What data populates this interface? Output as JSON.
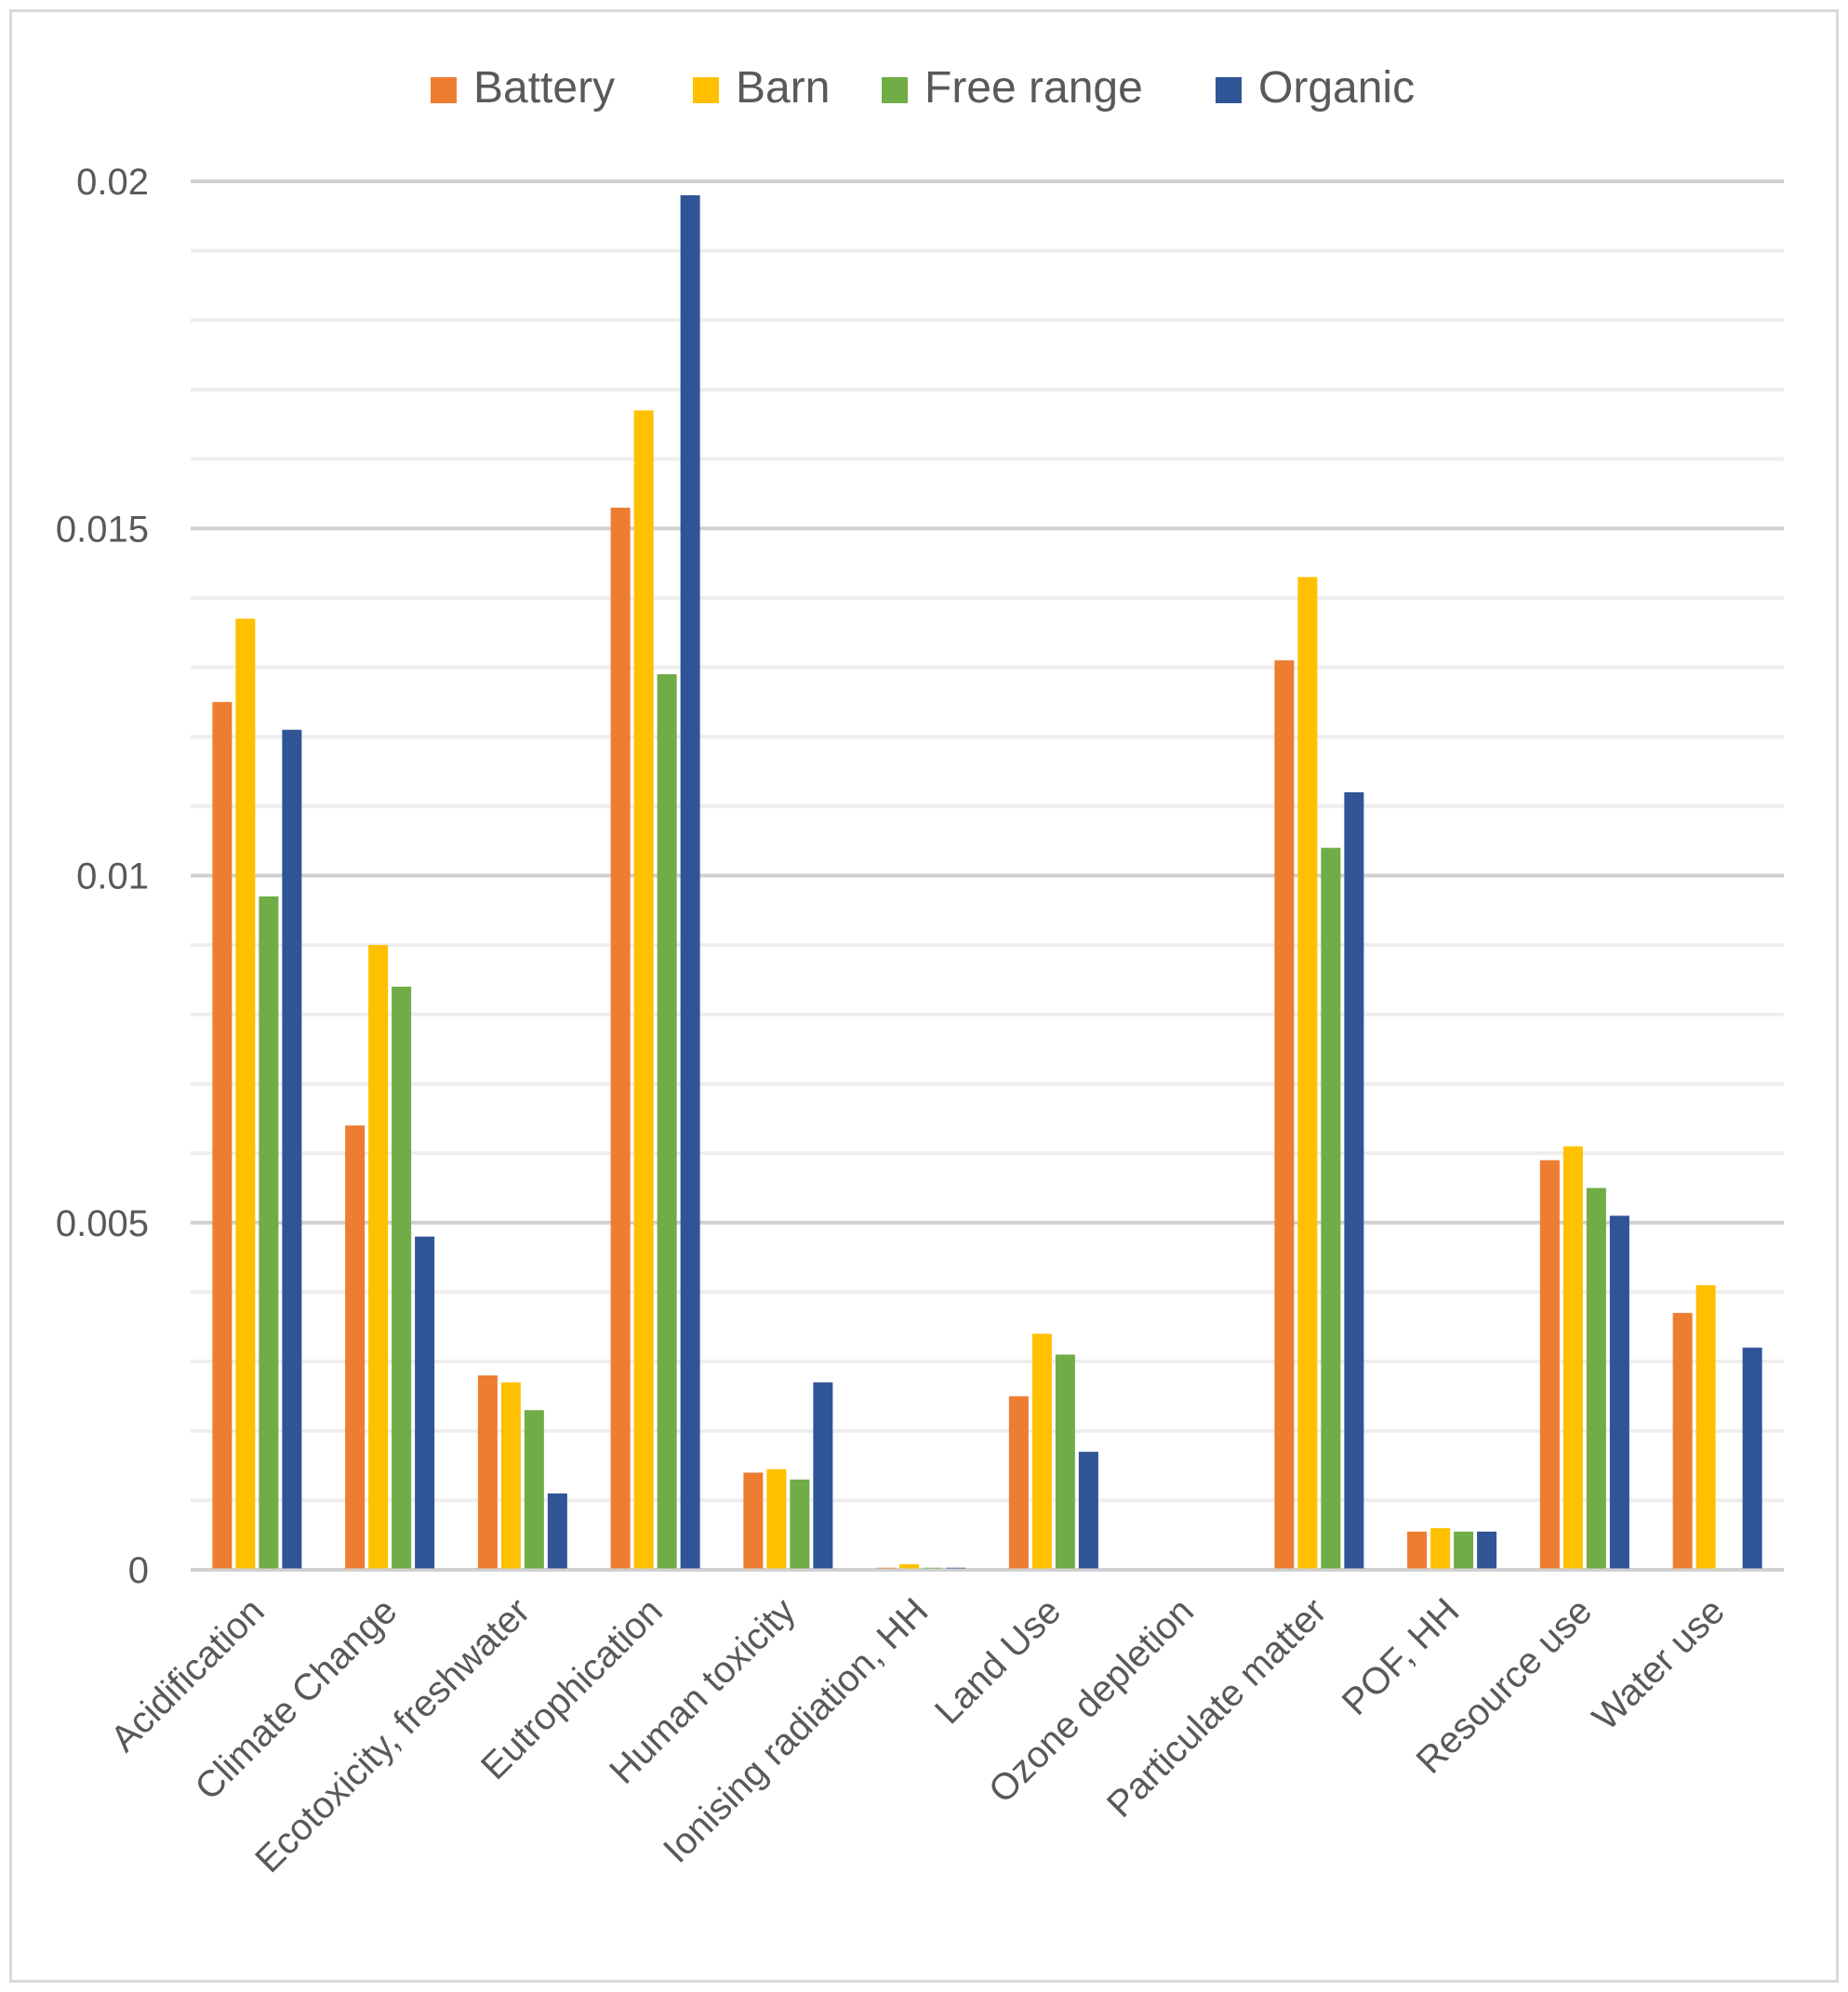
{
  "chart_data": {
    "type": "bar",
    "title": "",
    "xlabel": "",
    "ylabel": "",
    "ylim": [
      0,
      0.02
    ],
    "yticks": [
      0,
      0.005,
      0.01,
      0.015,
      0.02
    ],
    "ytick_labels": [
      "0",
      "0.005",
      "0.01",
      "0.015",
      "0.02"
    ],
    "grid": true,
    "legend_position": "top-center",
    "categories": [
      "Acidification",
      "Climate Change",
      "Ecotoxicity, freshwater",
      "Eutrophication",
      "Human toxicity",
      "Ionising radiation, HH",
      "Land Use",
      "Ozone depletion",
      "Particulate matter",
      "POF, HH",
      "Resource use",
      "Water use"
    ],
    "series": [
      {
        "name": "Battery",
        "color": "#ED7D31",
        "values": [
          0.0125,
          0.0064,
          0.0028,
          0.0153,
          0.0014,
          3e-05,
          0.0025,
          0.0,
          0.0131,
          0.00055,
          0.0059,
          0.0037
        ]
      },
      {
        "name": "Barn",
        "color": "#FFC000",
        "values": [
          0.0137,
          0.009,
          0.0027,
          0.0167,
          0.00145,
          8e-05,
          0.0034,
          0.0,
          0.0143,
          0.0006,
          0.0061,
          0.0041
        ]
      },
      {
        "name": "Free range",
        "color": "#70AD47",
        "values": [
          0.0097,
          0.0084,
          0.0023,
          0.0129,
          0.0013,
          3e-05,
          0.0031,
          0.0,
          0.0104,
          0.00055,
          0.0055,
          0.0
        ]
      },
      {
        "name": "Organic",
        "color": "#2F5597",
        "values": [
          0.0121,
          0.0048,
          0.0011,
          0.0198,
          0.0027,
          3e-05,
          0.0017,
          0.0,
          0.0112,
          0.00055,
          0.0051,
          0.0032
        ]
      }
    ]
  }
}
